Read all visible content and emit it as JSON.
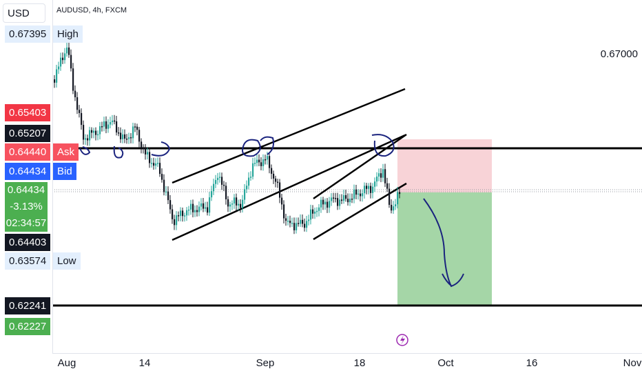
{
  "header": {
    "currency": "USD",
    "symbol": "AUDUSD, 4h, FXCM"
  },
  "price_scale": {
    "ticks": [
      "0.67000"
    ],
    "high": {
      "price": "0.67395",
      "label": "High"
    },
    "low": {
      "price": "0.63574",
      "label": "Low"
    },
    "markers": {
      "red1": "0.65403",
      "black1": "0.65207",
      "ask": {
        "price": "0.64440",
        "label": "Ask"
      },
      "bid": {
        "price": "0.64434",
        "label": "Bid"
      },
      "last": {
        "price": "0.64434",
        "change": "-3.13%",
        "countdown": "02:34:57"
      },
      "black2": "0.64403",
      "target_line": "0.62241",
      "green2": "0.62227"
    }
  },
  "time_axis": [
    "Aug",
    "14",
    "Sep",
    "18",
    "Oct",
    "16",
    "Nov"
  ],
  "colors": {
    "up": "#26a69a",
    "down": "#131722",
    "stop_zone": "#f8d3d7",
    "target_zone": "#a5d6a7",
    "drawing": "#1a237e",
    "ask": "#f7525f",
    "bid": "#2962ff"
  },
  "icons": {
    "replay": "lightning-icon"
  }
}
